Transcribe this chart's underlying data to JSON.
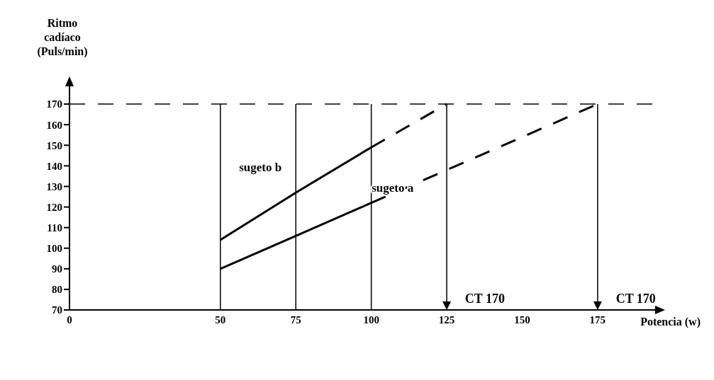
{
  "chart_data": {
    "type": "line",
    "xlabel": "Potencia (w)",
    "ylabel": "Ritmo cadíaco (Puls/min)",
    "xlim": [
      0,
      195
    ],
    "xticks": [
      0,
      50,
      75,
      100,
      125,
      150,
      175
    ],
    "ylim": [
      70,
      180
    ],
    "yticks": [
      70,
      80,
      90,
      100,
      110,
      120,
      130,
      140,
      150,
      160,
      170
    ],
    "grid": false,
    "legend": false,
    "marker": "none",
    "series": [
      {
        "name": "sugeto b",
        "color": "#000000",
        "line_style": "solid",
        "x": [
          50,
          75,
          100
        ],
        "values": [
          104,
          127,
          149
        ]
      },
      {
        "color": "#000000",
        "line_style": "dashed",
        "x": [
          100,
          125
        ],
        "values": [
          149,
          170
        ]
      },
      {
        "name": "sugeto a",
        "color": "#000000",
        "line_style": "solid",
        "x": [
          50,
          75,
          100
        ],
        "values": [
          90,
          106,
          122
        ]
      },
      {
        "color": "#000000",
        "line_style": "dashed",
        "x": [
          100,
          175
        ],
        "values": [
          122,
          170
        ]
      }
    ],
    "ref_lines": [
      {
        "axis": "y",
        "value": 170,
        "line_style": "dashed"
      },
      {
        "axis": "x",
        "value": 50
      },
      {
        "axis": "x",
        "value": 75
      },
      {
        "axis": "x",
        "value": 100
      },
      {
        "axis": "x",
        "value": 125,
        "label": "CT 170"
      },
      {
        "axis": "x",
        "value": 175,
        "label": "CT 170"
      }
    ]
  }
}
